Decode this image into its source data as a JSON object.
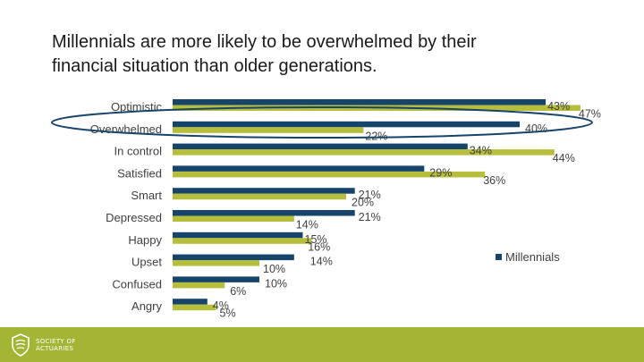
{
  "slide": {
    "title": "Millennials are more likely to be overwhelmed by their\nfinancial situation than older generations."
  },
  "colors": {
    "millennials": "#17446b",
    "other": "#b6be3c",
    "highlight_ring": "#17446b",
    "footer": "#a4b535"
  },
  "chart_data": {
    "type": "bar",
    "orientation": "horizontal",
    "categories": [
      "Optimistic",
      "Overwhelmed",
      "In control",
      "Satisfied",
      "Smart",
      "Depressed",
      "Happy",
      "Upset",
      "Confused",
      "Angry"
    ],
    "series": [
      {
        "name": "Millennials",
        "values": [
          43,
          40,
          34,
          29,
          21,
          21,
          15,
          14,
          10,
          4
        ]
      },
      {
        "values": [
          47,
          22,
          44,
          36,
          20,
          14,
          16,
          10,
          6,
          5
        ]
      }
    ],
    "value_labels": [
      [
        "43%",
        "40%",
        "34%",
        "29%",
        "21%",
        "21%",
        "15%",
        "14%",
        "10%",
        "4%"
      ],
      [
        "47%",
        "22%",
        "44%",
        "36%",
        "20%",
        "14%",
        "16%",
        "10%",
        "6%",
        "5%"
      ]
    ],
    "xlim": [
      0,
      50
    ],
    "highlighted_category": "Overwhelmed",
    "legend": {
      "entries": [
        "Millennials"
      ],
      "placement": "right"
    },
    "grid": false
  },
  "footer": {
    "logo_icon": "shield-icon",
    "logo_text": "SOCIETY OF\nACTUARIES"
  }
}
